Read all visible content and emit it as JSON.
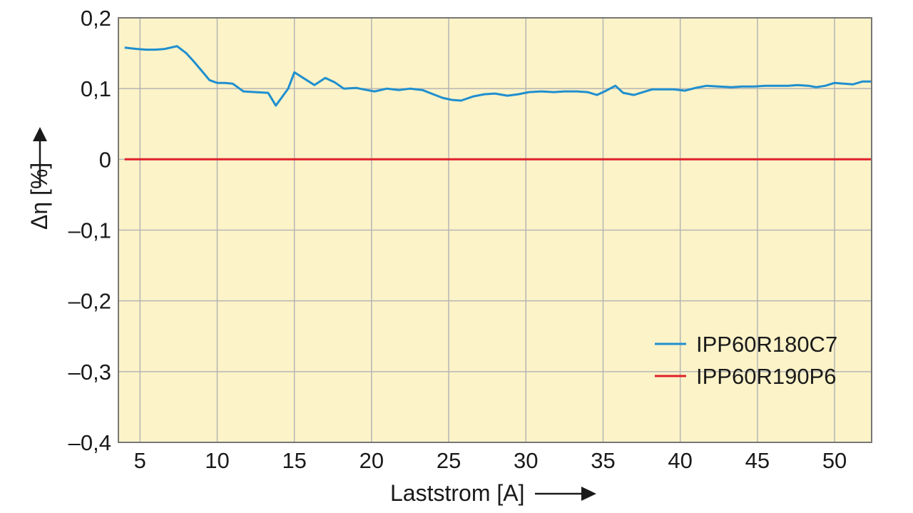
{
  "chart_data": {
    "type": "line",
    "xlabel": "Laststrom [A]",
    "ylabel": "Δη [%]",
    "xlim": [
      3.6,
      52.4
    ],
    "ylim": [
      -0.4,
      0.2
    ],
    "x_ticks": [
      5,
      10,
      15,
      20,
      25,
      30,
      35,
      40,
      45,
      50
    ],
    "x_tick_labels": [
      "5",
      "10",
      "15",
      "20",
      "25",
      "30",
      "35",
      "40",
      "45",
      "50"
    ],
    "y_ticks": [
      0.2,
      0.1,
      0,
      -0.1,
      -0.2,
      -0.3,
      -0.4
    ],
    "y_tick_labels": [
      "0,2",
      "0,1",
      "0",
      "–0,1",
      "–0,2",
      "–0,3",
      "–0,4"
    ],
    "grid": "vertical and horizontal at ticks",
    "legend_position": "lower-right",
    "background_color": "#fcf3c8",
    "series": [
      {
        "name": "IPP60R180C7",
        "color": "#1f8fcf",
        "x": [
          4.0,
          4.8,
          5.4,
          6.0,
          6.6,
          7.4,
          8.0,
          8.5,
          9.0,
          9.5,
          10.0,
          10.5,
          11.0,
          11.7,
          12.5,
          13.3,
          13.8,
          14.6,
          15.0,
          15.8,
          16.3,
          17.0,
          17.6,
          18.2,
          19.0,
          19.7,
          20.2,
          21.0,
          21.8,
          22.5,
          23.3,
          24.0,
          24.6,
          25.2,
          25.8,
          26.6,
          27.3,
          28.0,
          28.8,
          29.5,
          30.2,
          31.0,
          31.8,
          32.5,
          33.3,
          34.0,
          34.6,
          35.2,
          35.8,
          36.3,
          37.0,
          37.6,
          38.2,
          39.0,
          39.6,
          40.3,
          41.0,
          41.7,
          42.5,
          43.3,
          44.0,
          44.8,
          45.5,
          46.2,
          47.0,
          47.6,
          48.3,
          48.8,
          49.4,
          50.0,
          50.6,
          51.2,
          51.8,
          52.4
        ],
        "values": [
          0.158,
          0.156,
          0.155,
          0.155,
          0.156,
          0.16,
          0.15,
          0.138,
          0.125,
          0.112,
          0.108,
          0.108,
          0.107,
          0.096,
          0.095,
          0.094,
          0.076,
          0.1,
          0.123,
          0.112,
          0.105,
          0.115,
          0.109,
          0.1,
          0.101,
          0.098,
          0.096,
          0.1,
          0.098,
          0.1,
          0.098,
          0.092,
          0.087,
          0.084,
          0.083,
          0.089,
          0.092,
          0.093,
          0.09,
          0.092,
          0.095,
          0.096,
          0.095,
          0.096,
          0.096,
          0.095,
          0.091,
          0.097,
          0.104,
          0.094,
          0.091,
          0.095,
          0.099,
          0.099,
          0.099,
          0.097,
          0.101,
          0.104,
          0.103,
          0.102,
          0.103,
          0.103,
          0.104,
          0.104,
          0.104,
          0.105,
          0.104,
          0.102,
          0.104,
          0.108,
          0.107,
          0.106,
          0.11,
          0.11
        ]
      },
      {
        "name": "IPP60R190P6",
        "color": "#e0202a",
        "x": [
          4.0,
          52.4
        ],
        "values": [
          0,
          0
        ]
      }
    ]
  }
}
